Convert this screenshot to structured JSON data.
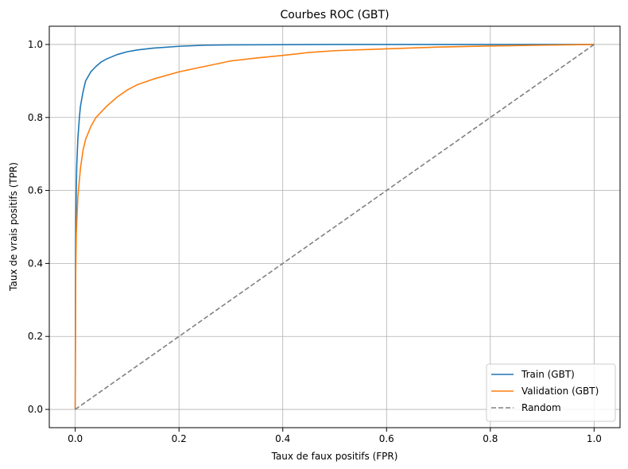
{
  "chart_data": {
    "type": "line",
    "title": "Courbes ROC (GBT)",
    "xlabel": "Taux de faux positifs (FPR)",
    "ylabel": "Taux de vrais positifs (TPR)",
    "xlim": [
      -0.05,
      1.05
    ],
    "ylim": [
      -0.05,
      1.05
    ],
    "xticks": [
      0.0,
      0.2,
      0.4,
      0.6,
      0.8,
      1.0
    ],
    "yticks": [
      0.0,
      0.2,
      0.4,
      0.6,
      0.8,
      1.0
    ],
    "xtick_labels": [
      "0.0",
      "0.2",
      "0.4",
      "0.6",
      "0.8",
      "1.0"
    ],
    "ytick_labels": [
      "0.0",
      "0.2",
      "0.4",
      "0.6",
      "0.8",
      "1.0"
    ],
    "grid": true,
    "legend_position": "lower-right",
    "series": [
      {
        "name": "Train (GBT)",
        "color": "#1f77b4",
        "dash": "solid",
        "x": [
          0,
          0.0005,
          0.001,
          0.002,
          0.003,
          0.005,
          0.008,
          0.01,
          0.015,
          0.02,
          0.03,
          0.04,
          0.05,
          0.06,
          0.08,
          0.1,
          0.12,
          0.15,
          0.2,
          0.25,
          0.3,
          0.4,
          0.5,
          0.6,
          0.8,
          1.0
        ],
        "y": [
          0,
          0.4,
          0.5,
          0.6,
          0.67,
          0.74,
          0.8,
          0.83,
          0.87,
          0.9,
          0.925,
          0.94,
          0.952,
          0.96,
          0.972,
          0.98,
          0.985,
          0.99,
          0.995,
          0.998,
          0.999,
          0.9995,
          1.0,
          1.0,
          1.0,
          1.0
        ]
      },
      {
        "name": "Validation (GBT)",
        "color": "#ff7f0e",
        "dash": "solid",
        "x": [
          0,
          0.001,
          0.002,
          0.005,
          0.01,
          0.015,
          0.02,
          0.03,
          0.04,
          0.05,
          0.06,
          0.08,
          0.1,
          0.12,
          0.15,
          0.2,
          0.25,
          0.3,
          0.35,
          0.4,
          0.45,
          0.5,
          0.6,
          0.7,
          0.8,
          0.9,
          1.0
        ],
        "y": [
          0,
          0.38,
          0.48,
          0.58,
          0.66,
          0.71,
          0.74,
          0.775,
          0.8,
          0.815,
          0.83,
          0.855,
          0.875,
          0.89,
          0.905,
          0.925,
          0.94,
          0.955,
          0.963,
          0.97,
          0.978,
          0.983,
          0.988,
          0.993,
          0.996,
          0.998,
          1.0
        ]
      },
      {
        "name": "Random",
        "color": "#808080",
        "dash": "dashed",
        "x": [
          0,
          1
        ],
        "y": [
          0,
          1
        ]
      }
    ]
  }
}
